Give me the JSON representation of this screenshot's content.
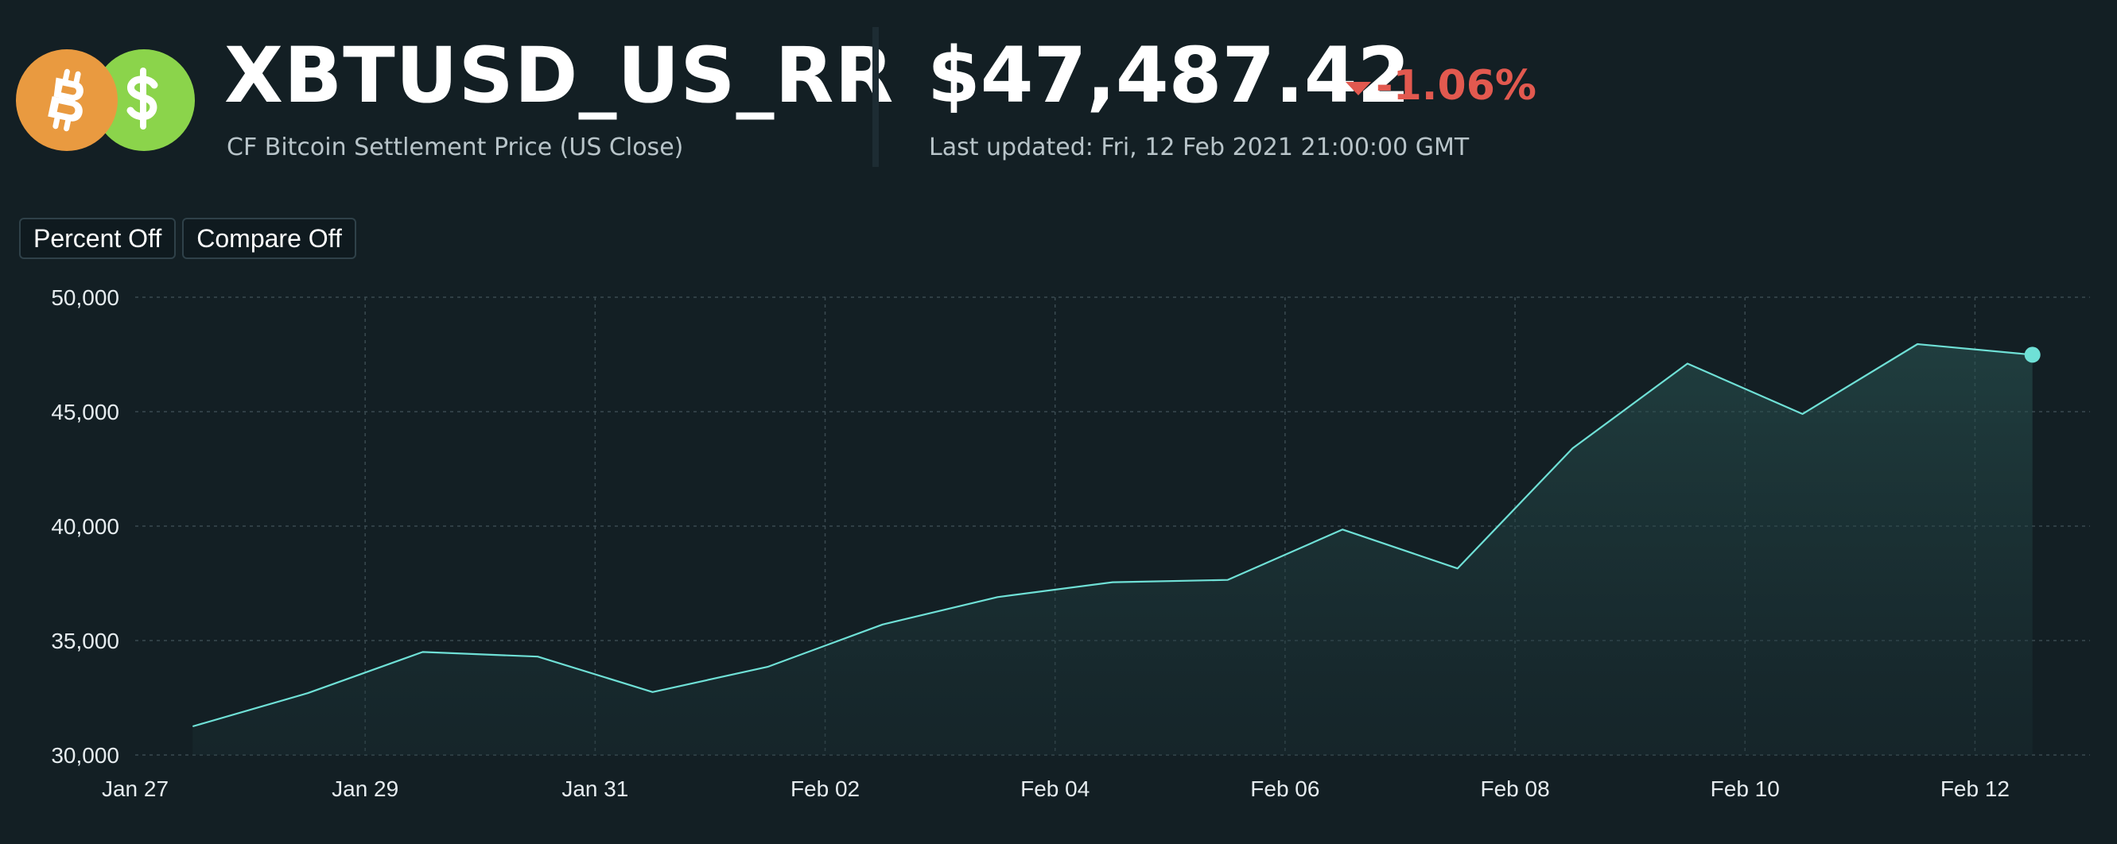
{
  "header": {
    "symbol": "XBTUSD_US_RR",
    "subtitle": "CF Bitcoin Settlement Price (US Close)",
    "price": "$47,487.42",
    "change": "-1.06%",
    "change_direction": "down",
    "last_updated": "Last updated: Fri, 12 Feb 2021 21:00:00 GMT",
    "icons": [
      "bitcoin-icon",
      "dollar-icon"
    ]
  },
  "toolbar": {
    "percent_label": "Percent Off",
    "compare_label": "Compare Off"
  },
  "colors": {
    "background": "#131f24",
    "line": "#6fe0d6",
    "area": "#1f3a3c",
    "grid": "#3a4a50",
    "negative": "#e2594f",
    "btc_orange": "#e99a40",
    "usd_green": "#8bd44b"
  },
  "chart_data": {
    "type": "area",
    "title": "",
    "xlabel": "",
    "ylabel": "",
    "ylim": [
      30000,
      50000
    ],
    "xlim": [
      "2021-01-27",
      "2021-02-13"
    ],
    "yticks": [
      30000,
      35000,
      40000,
      45000,
      50000
    ],
    "ytick_labels": [
      "30,000",
      "35,000",
      "40,000",
      "45,000",
      "50,000"
    ],
    "xticks": [
      "2021-01-27",
      "2021-01-29",
      "2021-01-31",
      "2021-02-02",
      "2021-02-04",
      "2021-02-06",
      "2021-02-08",
      "2021-02-10",
      "2021-02-12"
    ],
    "xtick_labels": [
      "Jan 27",
      "Jan 29",
      "Jan 31",
      "Feb 02",
      "Feb 04",
      "Feb 06",
      "Feb 08",
      "Feb 10",
      "Feb 12"
    ],
    "grid": true,
    "series": [
      {
        "x": [
          "2021-01-27 12:00",
          "2021-01-28 12:00",
          "2021-01-29 12:00",
          "2021-01-30 12:00",
          "2021-01-31 12:00",
          "2021-02-01 12:00",
          "2021-02-02 12:00",
          "2021-02-03 12:00",
          "2021-02-04 12:00",
          "2021-02-05 12:00",
          "2021-02-06 12:00",
          "2021-02-07 12:00",
          "2021-02-08 12:00",
          "2021-02-09 12:00",
          "2021-02-10 12:00",
          "2021-02-11 12:00",
          "2021-02-12 12:00"
        ],
        "values": [
          31250,
          32700,
          34500,
          34300,
          32750,
          33850,
          35700,
          36900,
          37550,
          37650,
          39850,
          38150,
          43400,
          47100,
          44900,
          47950,
          47487.42
        ]
      }
    ]
  }
}
